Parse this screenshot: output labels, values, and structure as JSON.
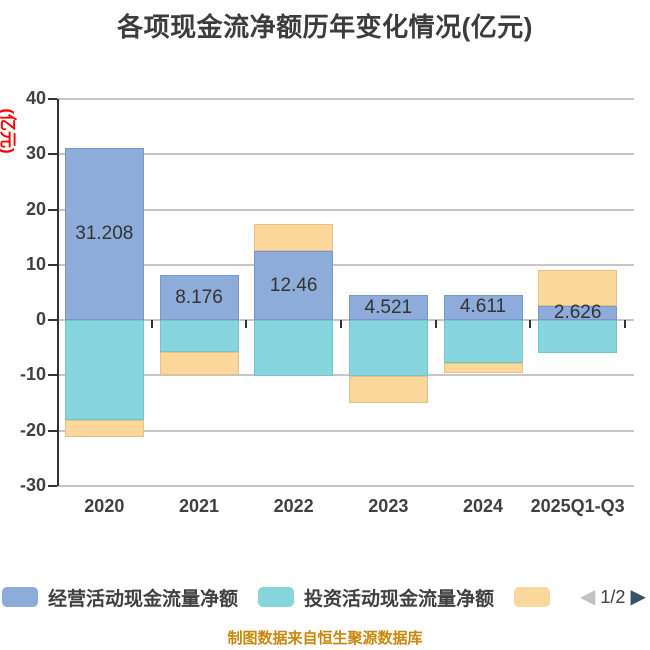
{
  "page": {
    "footer_source": "制图数据来自恒生聚源数据库"
  },
  "icons": {
    "legend_prev": "◀",
    "legend_next": "▶"
  },
  "colors": {
    "background": "#FFFFFF",
    "title_text": "#3C3C3C",
    "axis_text": "#404040",
    "axis_line": "#333333",
    "gridline": "#C6C6C6",
    "y_axis_name_text": "#FF0000",
    "bar_value_label": "#333333",
    "footer_text": "#C8870D",
    "legend_prev_arrow": "#C2C2C2",
    "legend_next_arrow": "#3B5166"
  },
  "chart_data": {
    "type": "bar",
    "stacked": true,
    "title": "各项现金流净额历年变化情况(亿元)",
    "y_axis_name": "(亿元)",
    "categories": [
      "2020",
      "2021",
      "2022",
      "2023",
      "2024",
      "2025Q1-Q3"
    ],
    "series": [
      {
        "name": "经营活动现金流量净额",
        "color": "#8EACD9",
        "border_color": "#7A97C9",
        "values": [
          31.208,
          8.176,
          12.46,
          4.521,
          4.611,
          2.626
        ],
        "data_labels": [
          "31.208",
          "8.176",
          "12.46",
          "4.521",
          "4.611",
          "2.626"
        ]
      },
      {
        "name": "",
        "color": "#87D5DC",
        "border_color": "#74C4CC",
        "values": [
          -18.1,
          -5.8,
          -10.1,
          -10.1,
          -7.7,
          -6.0
        ],
        "legend_label": "投资活动现金流量净额"
      },
      {
        "name": "",
        "color": "#FBD79B",
        "border_color": "#E7C286",
        "values": [
          -3.0,
          -4.2,
          4.9,
          -4.9,
          -1.8,
          6.5
        ],
        "legend_label": ""
      }
    ],
    "ylim": [
      -30,
      40
    ],
    "y_ticks": [
      40,
      30,
      20,
      10,
      0,
      -10,
      -20,
      -30
    ],
    "grid": true,
    "legend_position": "bottom",
    "legend_page": "1/2"
  }
}
